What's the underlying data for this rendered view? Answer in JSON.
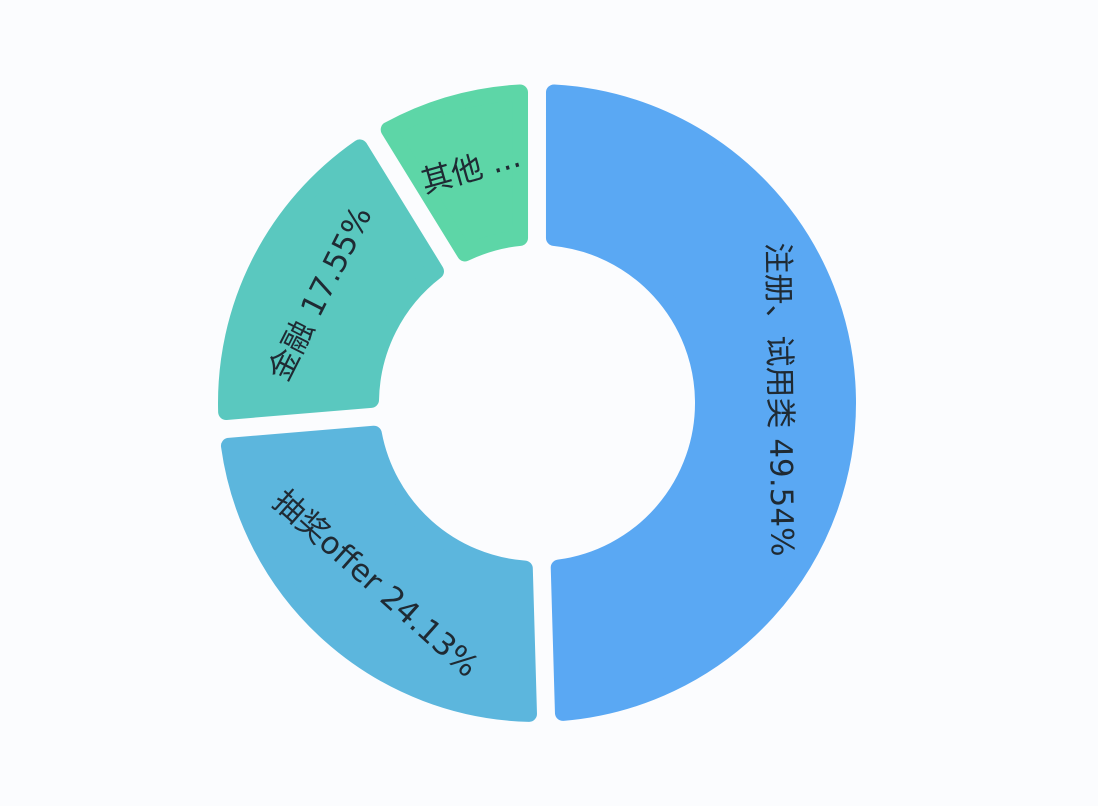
{
  "chart_data": {
    "type": "pie",
    "donut": true,
    "title": "",
    "slices": [
      {
        "label": "注册、试用类",
        "value": 49.54,
        "display": "注册、试用类 49.54%",
        "color": "#5aa8f3"
      },
      {
        "label": "抽奖offer",
        "value": 24.13,
        "display": "抽奖offer 24.13%",
        "color": "#5cb6dd"
      },
      {
        "label": "金融",
        "value": 17.55,
        "display": "金融 17.55%",
        "color": "#5ac8bf"
      },
      {
        "label": "其他",
        "value": 8.78,
        "display": "其他 ...",
        "color": "#5dd6a7"
      }
    ],
    "start_angle": "top",
    "direction": "clockwise",
    "legend": "bottom"
  }
}
